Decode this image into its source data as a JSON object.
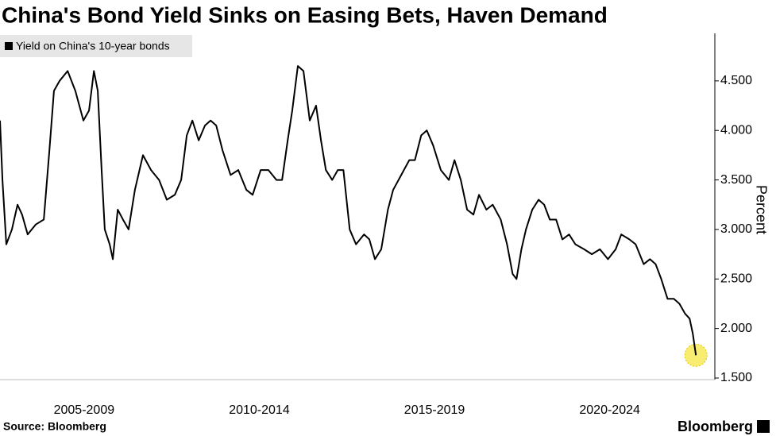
{
  "chart_data": {
    "type": "line",
    "title": "China's Bond Yield Sinks on Easing Bets, Haven Demand",
    "y_label": "Percent",
    "source": "Source: Bloomberg",
    "logo": "Bloomberg",
    "highlight_color": "#f5e642",
    "x": [
      2005.1,
      2005.17,
      2005.28,
      2005.44,
      2005.6,
      2005.73,
      2005.89,
      2006.12,
      2006.35,
      2006.51,
      2006.64,
      2006.8,
      2007.03,
      2007.25,
      2007.48,
      2007.64,
      2007.78,
      2007.89,
      2008.0,
      2008.09,
      2008.23,
      2008.32,
      2008.46,
      2008.61,
      2008.77,
      2008.95,
      2009.18,
      2009.41,
      2009.64,
      2009.86,
      2010.09,
      2010.27,
      2010.43,
      2010.59,
      2010.77,
      2010.95,
      2011.11,
      2011.27,
      2011.45,
      2011.68,
      2011.9,
      2012.13,
      2012.31,
      2012.54,
      2012.76,
      2012.99,
      2013.15,
      2013.31,
      2013.44,
      2013.6,
      2013.76,
      2013.94,
      2014.12,
      2014.26,
      2014.4,
      2014.58,
      2014.74,
      2014.9,
      2015.08,
      2015.26,
      2015.49,
      2015.64,
      2015.8,
      2015.98,
      2016.17,
      2016.32,
      2016.55,
      2016.78,
      2016.94,
      2017.12,
      2017.28,
      2017.46,
      2017.68,
      2017.91,
      2018.07,
      2018.25,
      2018.43,
      2018.61,
      2018.77,
      2018.98,
      2019.16,
      2019.39,
      2019.57,
      2019.73,
      2019.84,
      2019.98,
      2020.11,
      2020.29,
      2020.47,
      2020.63,
      2020.79,
      2020.97,
      2021.15,
      2021.34,
      2021.52,
      2021.77,
      2021.99,
      2022.22,
      2022.45,
      2022.67,
      2022.83,
      2023.06,
      2023.24,
      2023.47,
      2023.65,
      2023.81,
      2023.97,
      2024.15,
      2024.33,
      2024.49,
      2024.65,
      2024.78,
      2024.87,
      2024.96
    ],
    "series": [
      {
        "name": "Yield on China's 10-year bonds",
        "color": "#000000",
        "values": [
          4.1,
          3.5,
          2.85,
          3.0,
          3.25,
          3.15,
          2.95,
          3.05,
          3.1,
          3.8,
          4.4,
          4.5,
          4.6,
          4.4,
          4.1,
          4.2,
          4.6,
          4.4,
          3.6,
          3.0,
          2.85,
          2.7,
          3.2,
          3.1,
          3.0,
          3.4,
          3.75,
          3.6,
          3.5,
          3.3,
          3.35,
          3.5,
          3.95,
          4.1,
          3.9,
          4.05,
          4.1,
          4.05,
          3.8,
          3.55,
          3.6,
          3.4,
          3.35,
          3.6,
          3.6,
          3.5,
          3.5,
          3.9,
          4.2,
          4.65,
          4.6,
          4.1,
          4.25,
          3.9,
          3.6,
          3.5,
          3.6,
          3.6,
          3.0,
          2.85,
          2.95,
          2.9,
          2.7,
          2.8,
          3.2,
          3.4,
          3.55,
          3.7,
          3.7,
          3.95,
          4.0,
          3.85,
          3.6,
          3.5,
          3.7,
          3.5,
          3.2,
          3.15,
          3.35,
          3.2,
          3.25,
          3.1,
          2.85,
          2.55,
          2.5,
          2.8,
          3.0,
          3.2,
          3.3,
          3.25,
          3.1,
          3.1,
          2.9,
          2.95,
          2.85,
          2.8,
          2.75,
          2.8,
          2.7,
          2.8,
          2.95,
          2.9,
          2.85,
          2.65,
          2.7,
          2.65,
          2.5,
          2.3,
          2.3,
          2.25,
          2.15,
          2.1,
          1.95,
          1.73
        ]
      }
    ],
    "xlim": [
      2005.1,
      2025.5
    ],
    "xticks": [
      {
        "value": 2007.5,
        "label": "2005-2009"
      },
      {
        "value": 2012.5,
        "label": "2010-2014"
      },
      {
        "value": 2017.5,
        "label": "2015-2019"
      },
      {
        "value": 2022.5,
        "label": "2020-2024"
      }
    ],
    "ylim": [
      1.5,
      4.98
    ],
    "yticks": [
      {
        "value": 1.5,
        "label": "1.500"
      },
      {
        "value": 2.0,
        "label": "2.000"
      },
      {
        "value": 2.5,
        "label": "2.500"
      },
      {
        "value": 3.0,
        "label": "3.000"
      },
      {
        "value": 3.5,
        "label": "3.500"
      },
      {
        "value": 4.0,
        "label": "4.000"
      },
      {
        "value": 4.5,
        "label": "4.500"
      }
    ],
    "grid": false
  }
}
